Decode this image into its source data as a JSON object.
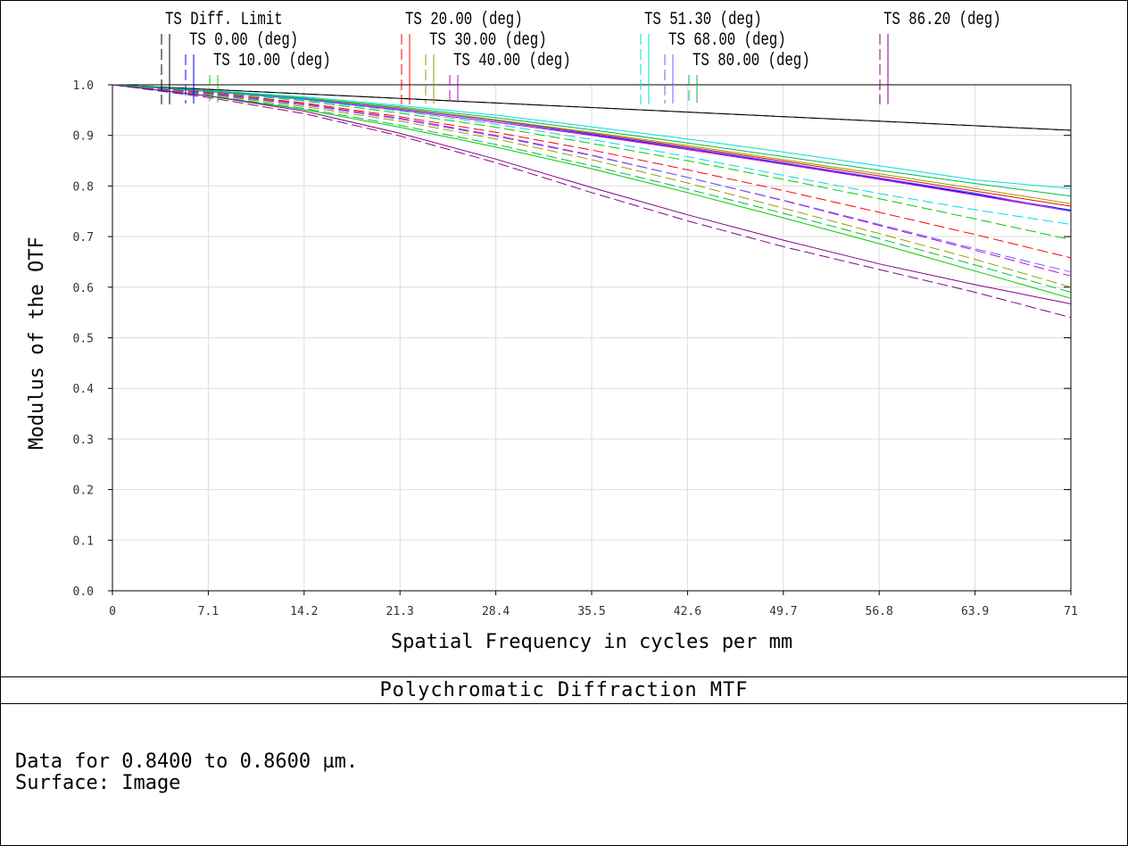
{
  "chart_data": {
    "type": "line",
    "title": "Polychromatic Diffraction MTF",
    "xlabel": "Spatial Frequency in cycles per mm",
    "ylabel": "Modulus of the OTF",
    "xlim": [
      0,
      71
    ],
    "ylim": [
      0,
      1
    ],
    "x_ticks": [
      "0",
      "7.1",
      "14.2",
      "21.3",
      "28.4",
      "35.5",
      "42.6",
      "49.7",
      "56.8",
      "63.9",
      "71"
    ],
    "y_ticks": [
      "0.0",
      "0.1",
      "0.2",
      "0.3",
      "0.4",
      "0.5",
      "0.6",
      "0.7",
      "0.8",
      "0.9",
      "1.0"
    ],
    "grid": true,
    "legend_placement": "top",
    "x": [
      0,
      7.1,
      14.2,
      21.3,
      28.4,
      35.5,
      42.6,
      49.7,
      56.8,
      63.9,
      71
    ],
    "series": [
      {
        "name": "TS Diff. Limit",
        "color": "#000000",
        "tangential": [
          1.0,
          0.991,
          0.982,
          0.973,
          0.964,
          0.955,
          0.946,
          0.937,
          0.928,
          0.919,
          0.91
        ],
        "sagittal": [
          1.0,
          0.991,
          0.982,
          0.973,
          0.964,
          0.955,
          0.946,
          0.937,
          0.928,
          0.919,
          0.91
        ]
      },
      {
        "name": "TS 0.00 (deg)",
        "color": "#0000ff",
        "tangential": [
          1.0,
          0.988,
          0.973,
          0.953,
          0.929,
          0.902,
          0.874,
          0.845,
          0.815,
          0.784,
          0.752
        ],
        "sagittal": [
          1.0,
          0.988,
          0.973,
          0.953,
          0.929,
          0.902,
          0.874,
          0.845,
          0.815,
          0.784,
          0.752
        ]
      },
      {
        "name": "TS 10.00 (deg)",
        "color": "#00cc00",
        "tangential": [
          1.0,
          0.978,
          0.951,
          0.916,
          0.877,
          0.834,
          0.787,
          0.737,
          0.686,
          0.632,
          0.578
        ],
        "sagittal": [
          1.0,
          0.986,
          0.968,
          0.944,
          0.916,
          0.884,
          0.85,
          0.813,
          0.775,
          0.735,
          0.694
        ]
      },
      {
        "name": "TS 20.00 (deg)",
        "color": "#ff0000",
        "tangential": [
          1.0,
          0.988,
          0.973,
          0.953,
          0.93,
          0.904,
          0.877,
          0.849,
          0.82,
          0.79,
          0.76
        ],
        "sagittal": [
          1.0,
          0.985,
          0.964,
          0.937,
          0.906,
          0.871,
          0.832,
          0.791,
          0.748,
          0.704,
          0.658
        ]
      },
      {
        "name": "TS 30.00 (deg)",
        "color": "#999900",
        "tangential": [
          1.0,
          0.988,
          0.973,
          0.954,
          0.931,
          0.906,
          0.88,
          0.852,
          0.824,
          0.795,
          0.765
        ],
        "sagittal": [
          1.0,
          0.981,
          0.957,
          0.928,
          0.893,
          0.852,
          0.806,
          0.756,
          0.706,
          0.655,
          0.6
        ]
      },
      {
        "name": "TS 40.00 (deg)",
        "color": "#cc00cc",
        "tangential": [
          1.0,
          0.987,
          0.971,
          0.95,
          0.926,
          0.9,
          0.872,
          0.843,
          0.813,
          0.782,
          0.75
        ],
        "sagittal": [
          1.0,
          0.983,
          0.962,
          0.934,
          0.9,
          0.861,
          0.817,
          0.771,
          0.722,
          0.673,
          0.622
        ]
      },
      {
        "name": "TS 51.30 (deg)",
        "color": "#00dddd",
        "tangential": [
          1.0,
          0.989,
          0.976,
          0.959,
          0.94,
          0.917,
          0.893,
          0.867,
          0.84,
          0.812,
          0.795
        ],
        "sagittal": [
          1.0,
          0.987,
          0.97,
          0.948,
          0.922,
          0.892,
          0.858,
          0.821,
          0.785,
          0.753,
          0.724
        ]
      },
      {
        "name": "TS 68.00 (deg)",
        "color": "#6666ff",
        "tangential": [
          1.0,
          0.987,
          0.972,
          0.952,
          0.929,
          0.903,
          0.875,
          0.846,
          0.816,
          0.786,
          0.75
        ],
        "sagittal": [
          1.0,
          0.982,
          0.96,
          0.932,
          0.898,
          0.86,
          0.817,
          0.772,
          0.724,
          0.676,
          0.63
        ]
      },
      {
        "name": "TS 80.00 (deg)",
        "color": "#00bb44",
        "tangential": [
          1.0,
          0.988,
          0.974,
          0.956,
          0.935,
          0.911,
          0.885,
          0.858,
          0.831,
          0.805,
          0.78
        ],
        "sagittal": [
          1.0,
          0.979,
          0.953,
          0.92,
          0.882,
          0.84,
          0.794,
          0.746,
          0.696,
          0.644,
          0.59
        ]
      },
      {
        "name": "TS 86.20 (deg)",
        "color": "#880088",
        "tangential": [
          1.0,
          0.978,
          0.948,
          0.904,
          0.853,
          0.797,
          0.743,
          0.693,
          0.646,
          0.605,
          0.567
        ],
        "sagittal": [
          1.0,
          0.975,
          0.943,
          0.899,
          0.846,
          0.787,
          0.731,
          0.68,
          0.635,
          0.59,
          0.54
        ]
      }
    ]
  },
  "footer": {
    "line1": "Data for 0.8400 to 0.8600 µm.",
    "line2": "Surface: Image"
  }
}
